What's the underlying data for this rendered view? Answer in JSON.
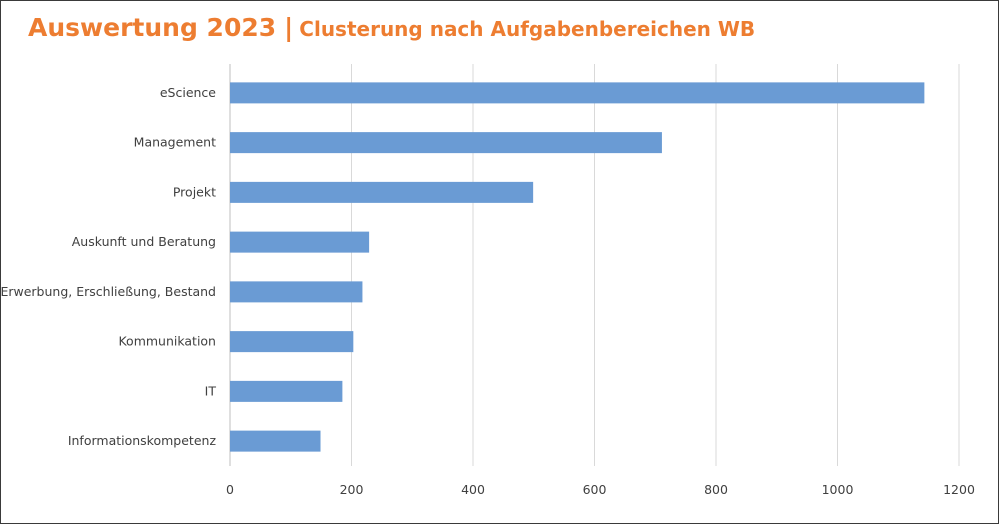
{
  "header": {
    "title": "Auswertung 2023",
    "separator": "|",
    "subtitle": "Clusterung nach Aufgabenbereichen WB"
  },
  "colors": {
    "accent": "#ed7d31",
    "bar": "#6a9bd4",
    "grid": "#d9d9d9",
    "text": "#404040"
  },
  "chart_data": {
    "type": "bar",
    "orientation": "horizontal",
    "categories": [
      "eScience",
      "Management",
      "Projekt",
      "Auskunft und Beratung",
      "Erwerbung, Erschließung, Bestand",
      "Kommunikation",
      "IT",
      "Informationskompetenz"
    ],
    "values": [
      1143,
      711,
      499,
      229,
      218,
      203,
      185,
      149
    ],
    "xlim": [
      0,
      1200
    ],
    "ticks": [
      0,
      200,
      400,
      600,
      800,
      1000,
      1200
    ],
    "grid": true,
    "legend": "none"
  }
}
